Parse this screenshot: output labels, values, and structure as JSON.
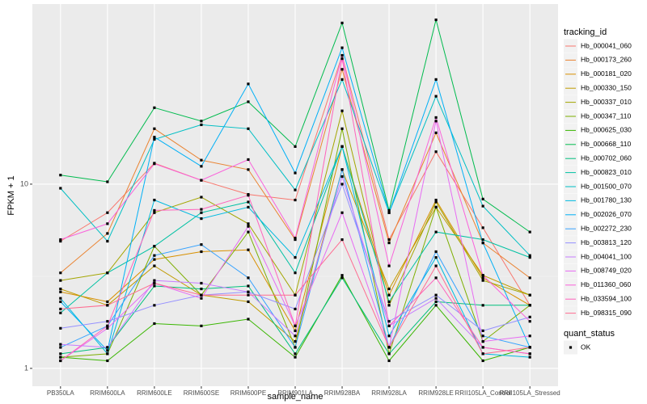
{
  "chart_data": {
    "type": "line",
    "xlabel": "sample_name",
    "ylabel": "FPKM + 1",
    "categories": [
      "PB350LA",
      "RRIM600LA",
      "RRIM600LE",
      "RRIM600SE",
      "RRIM600PE",
      "RRIM901LA",
      "RRIM928BA",
      "RRIM928LA",
      "RRIM928LE",
      "RRII105LA_Control",
      "RRII105LA_Stressed"
    ],
    "ylim": [
      0.8,
      95
    ],
    "yticks": [
      1,
      10
    ],
    "log_y": true,
    "grid": true,
    "legend_title": "tracking_id",
    "point_legend": {
      "title": "quant_status",
      "labels": [
        "OK"
      ],
      "color": "#000000"
    },
    "series": [
      {
        "name": "Hb_000041_060",
        "color": "#F8766D",
        "values": [
          4.9,
          7,
          13,
          10.5,
          8.8,
          8.2,
          50,
          5,
          15,
          5.8,
          2.2
        ]
      },
      {
        "name": "Hb_000173_260",
        "color": "#EA8331",
        "values": [
          3.3,
          5.4,
          20,
          13.5,
          12,
          5,
          42,
          4.8,
          19,
          4.8,
          3.1
        ]
      },
      {
        "name": "Hb_000181_020",
        "color": "#D89000",
        "values": [
          2.6,
          2.3,
          3.9,
          4.3,
          4.4,
          1.6,
          16,
          2.5,
          8.2,
          3.1,
          2.2
        ]
      },
      {
        "name": "Hb_000330_150",
        "color": "#C09B00",
        "values": [
          2.7,
          2.2,
          3.6,
          2.5,
          2.3,
          1.4,
          12,
          2.7,
          7.5,
          3.2,
          2.5
        ]
      },
      {
        "name": "Hb_000337_010",
        "color": "#A3A500",
        "values": [
          3.0,
          3.3,
          7,
          8.5,
          6.1,
          2.5,
          25,
          2.2,
          8,
          3.0,
          2.5
        ]
      },
      {
        "name": "Hb_000347_110",
        "color": "#7CAE00",
        "values": [
          1.15,
          1.2,
          4.6,
          2.5,
          5.5,
          1.3,
          20,
          1.2,
          7.5,
          1.4,
          2.2
        ]
      },
      {
        "name": "Hb_000625_030",
        "color": "#39B600",
        "values": [
          1.15,
          1.1,
          1.75,
          1.7,
          1.85,
          1.15,
          3.2,
          1.1,
          2.2,
          1.1,
          1.3
        ]
      },
      {
        "name": "Hb_000668_110",
        "color": "#00BB4E",
        "values": [
          11.2,
          10.3,
          26,
          22,
          28,
          16,
          75,
          7.2,
          78,
          8.3,
          5.5
        ]
      },
      {
        "name": "Hb_000702_060",
        "color": "#00BF7D",
        "values": [
          1.2,
          1.3,
          2.8,
          2.7,
          2.8,
          1.2,
          3.1,
          1.2,
          2.3,
          2.2,
          2.2
        ]
      },
      {
        "name": "Hb_000823_010",
        "color": "#00C1A3",
        "values": [
          2.0,
          3.3,
          4.6,
          7,
          8,
          3.3,
          16,
          2.3,
          5.5,
          5,
          4
        ]
      },
      {
        "name": "Hb_001500_070",
        "color": "#00BFC4",
        "values": [
          9.5,
          4.9,
          17.5,
          21,
          20,
          9.3,
          37,
          7,
          30,
          7.6,
          4.1
        ]
      },
      {
        "name": "Hb_001780_130",
        "color": "#00BAE0",
        "values": [
          2.4,
          1.2,
          8.2,
          6.5,
          7.5,
          4,
          16,
          1.5,
          4,
          1.2,
          1.15
        ]
      },
      {
        "name": "Hb_002026_070",
        "color": "#00B0F6",
        "values": [
          2.3,
          1.25,
          18,
          12.5,
          35,
          11.5,
          55,
          7,
          37,
          4.8,
          1.3
        ]
      },
      {
        "name": "Hb_002272_230",
        "color": "#35A2FF",
        "values": [
          1.3,
          1.7,
          4.1,
          4.7,
          3.1,
          1.3,
          12,
          1.3,
          4.3,
          1.5,
          1.3
        ]
      },
      {
        "name": "Hb_003813_120",
        "color": "#9590FF",
        "values": [
          1.65,
          1.8,
          2.2,
          2.5,
          2.6,
          2.1,
          10,
          1.8,
          2.5,
          1.6,
          1.9
        ]
      },
      {
        "name": "Hb_004041_100",
        "color": "#C77CFF",
        "values": [
          1.35,
          1.3,
          3,
          2.9,
          2.6,
          1.5,
          11,
          1.7,
          2.4,
          1.3,
          1.2
        ]
      },
      {
        "name": "Hb_008749_020",
        "color": "#E76BF3",
        "values": [
          1.1,
          1.65,
          2.9,
          2.4,
          5.9,
          1.7,
          7,
          1.3,
          22,
          1.4,
          1.5
        ]
      },
      {
        "name": "Hb_011360_060",
        "color": "#FA62DB",
        "values": [
          5,
          6.1,
          12.9,
          10.5,
          13.6,
          5.1,
          50,
          3.6,
          23,
          3.2,
          1.8
        ]
      },
      {
        "name": "Hb_033594_100",
        "color": "#FF62BC",
        "values": [
          1.1,
          1.7,
          7.2,
          7.3,
          8.7,
          1.7,
          48,
          1.7,
          3.1,
          1.3,
          1.2
        ]
      },
      {
        "name": "Hb_098315_090",
        "color": "#FF6C91",
        "values": [
          2.1,
          2.2,
          2.9,
          2.5,
          2.5,
          2.5,
          5,
          1.3,
          3.6,
          1.2,
          1.3
        ]
      }
    ]
  }
}
